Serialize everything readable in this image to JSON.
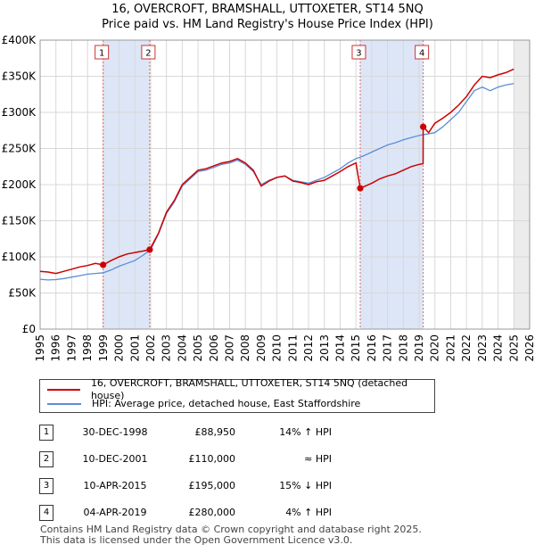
{
  "title_line1": "16, OVERCROFT, BRAMSHALL, UTTOXETER, ST14 5NQ",
  "title_line2": "Price paid vs. HM Land Registry's House Price Index (HPI)",
  "colors": {
    "property": "#cc0000",
    "hpi": "#5b8ed6",
    "shade": "#dde6f7",
    "marker_line": "#dd6666",
    "grid": "#d8d8d8"
  },
  "chart_data": {
    "type": "line",
    "xlim": [
      1995,
      2026
    ],
    "ylim": [
      0,
      400000
    ],
    "yticks": [
      0,
      50000,
      100000,
      150000,
      200000,
      250000,
      300000,
      350000,
      400000
    ],
    "ytick_labels": [
      "£0",
      "£50K",
      "£100K",
      "£150K",
      "£200K",
      "£250K",
      "£300K",
      "£350K",
      "£400K"
    ],
    "xticks": [
      1995,
      1996,
      1997,
      1998,
      1999,
      2000,
      2001,
      2002,
      2003,
      2004,
      2005,
      2006,
      2007,
      2008,
      2009,
      2010,
      2011,
      2012,
      2013,
      2014,
      2015,
      2016,
      2017,
      2018,
      2019,
      2020,
      2021,
      2022,
      2023,
      2024,
      2025,
      2026
    ],
    "shaded_periods": [
      [
        1998.99,
        2001.94
      ],
      [
        2015.27,
        2019.26
      ]
    ],
    "forecast_start": 2025.0,
    "series": [
      {
        "name": "16, OVERCROFT, BRAMSHALL, UTTOXETER, ST14 5NQ (detached house)",
        "x": [
          1995.0,
          1995.5,
          1996.0,
          1996.5,
          1997.0,
          1997.5,
          1998.0,
          1998.5,
          1998.99,
          1999.5,
          2000.0,
          2000.5,
          2001.0,
          2001.5,
          2001.94,
          2002.5,
          2003.0,
          2003.5,
          2004.0,
          2004.5,
          2005.0,
          2005.5,
          2006.0,
          2006.5,
          2007.0,
          2007.5,
          2008.0,
          2008.5,
          2009.0,
          2009.5,
          2010.0,
          2010.5,
          2011.0,
          2011.5,
          2012.0,
          2012.5,
          2013.0,
          2013.5,
          2014.0,
          2014.5,
          2015.0,
          2015.27,
          2015.6,
          2016.0,
          2016.5,
          2017.0,
          2017.5,
          2018.0,
          2018.5,
          2019.0,
          2019.25,
          2019.26,
          2019.6,
          2020.0,
          2020.5,
          2021.0,
          2021.5,
          2022.0,
          2022.5,
          2023.0,
          2023.5,
          2024.0,
          2024.5,
          2025.0
        ],
        "values": [
          80000,
          79000,
          77000,
          80000,
          83000,
          86000,
          88000,
          91000,
          88950,
          95000,
          100000,
          104000,
          106000,
          108000,
          110000,
          133000,
          162000,
          178000,
          200000,
          210000,
          220000,
          222000,
          226000,
          230000,
          232000,
          236000,
          230000,
          220000,
          198000,
          205000,
          210000,
          212000,
          205000,
          203000,
          200000,
          204000,
          206000,
          212000,
          218000,
          225000,
          230000,
          195000,
          198000,
          202000,
          208000,
          212000,
          215000,
          220000,
          225000,
          228000,
          229000,
          280000,
          272000,
          285000,
          292000,
          300000,
          310000,
          322000,
          338000,
          350000,
          348000,
          352000,
          355000,
          360000
        ]
      },
      {
        "name": "HPI: Average price, detached house, East Staffordshire",
        "x": [
          1995.0,
          1995.5,
          1996.0,
          1996.5,
          1997.0,
          1997.5,
          1998.0,
          1998.5,
          1999.0,
          1999.5,
          2000.0,
          2000.5,
          2001.0,
          2001.5,
          2002.0,
          2002.5,
          2003.0,
          2003.5,
          2004.0,
          2004.5,
          2005.0,
          2005.5,
          2006.0,
          2006.5,
          2007.0,
          2007.5,
          2008.0,
          2008.5,
          2009.0,
          2009.5,
          2010.0,
          2010.5,
          2011.0,
          2011.5,
          2012.0,
          2012.5,
          2013.0,
          2013.5,
          2014.0,
          2014.5,
          2015.0,
          2015.5,
          2016.0,
          2016.5,
          2017.0,
          2017.5,
          2018.0,
          2018.5,
          2019.0,
          2019.5,
          2020.0,
          2020.5,
          2021.0,
          2021.5,
          2022.0,
          2022.5,
          2023.0,
          2023.5,
          2024.0,
          2024.5,
          2025.0
        ],
        "values": [
          69000,
          68000,
          68500,
          70000,
          72000,
          74000,
          76000,
          77000,
          78000,
          82000,
          87000,
          91000,
          95000,
          102000,
          110000,
          132000,
          160000,
          176000,
          198000,
          208000,
          218000,
          220000,
          224000,
          228000,
          230000,
          234000,
          228000,
          218000,
          200000,
          206000,
          210000,
          212000,
          206000,
          204000,
          202000,
          206000,
          210000,
          216000,
          222000,
          230000,
          236000,
          240000,
          245000,
          250000,
          255000,
          258000,
          262000,
          265000,
          268000,
          270000,
          272000,
          280000,
          290000,
          300000,
          315000,
          330000,
          335000,
          330000,
          335000,
          338000,
          340000
        ]
      }
    ],
    "sale_points": [
      {
        "label": "1",
        "x": 1998.99,
        "y": 88950
      },
      {
        "label": "2",
        "x": 2001.94,
        "y": 110000
      },
      {
        "label": "3",
        "x": 2015.27,
        "y": 195000
      },
      {
        "label": "4",
        "x": 2019.26,
        "y": 280000
      }
    ]
  },
  "legend": {
    "property_label": "16, OVERCROFT, BRAMSHALL, UTTOXETER, ST14 5NQ (detached house)",
    "hpi_label": "HPI: Average price, detached house, East Staffordshire"
  },
  "sales": [
    {
      "num": "1",
      "date": "30-DEC-1998",
      "price": "£88,950",
      "hpi": "14% ↑ HPI"
    },
    {
      "num": "2",
      "date": "10-DEC-2001",
      "price": "£110,000",
      "hpi": "≈ HPI"
    },
    {
      "num": "3",
      "date": "10-APR-2015",
      "price": "£195,000",
      "hpi": "15% ↓ HPI"
    },
    {
      "num": "4",
      "date": "04-APR-2019",
      "price": "£280,000",
      "hpi": "4% ↑ HPI"
    }
  ],
  "footer": {
    "line1": "Contains HM Land Registry data © Crown copyright and database right 2025.",
    "line2": "This data is licensed under the Open Government Licence v3.0."
  }
}
